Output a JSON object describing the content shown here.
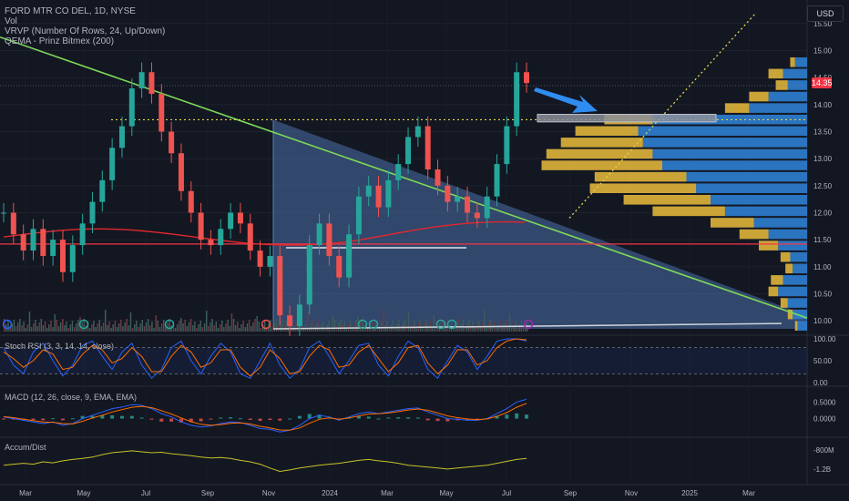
{
  "header": {
    "symbol": "FORD MTR CO DEL, 1D, NYSE",
    "vol": "Vol",
    "vrvp": "VRVP (Number Of Rows, 24, Up/Down)",
    "qema": "QEMA - Prinz Bitmex (200)",
    "currency": "USD",
    "last_price": "14.35"
  },
  "indicators": {
    "stoch": "Stoch RSI (3, 3, 14, 14, close)",
    "macd": "MACD (12, 26, close, 9, EMA, EMA)",
    "accum": "Accum/Dist"
  },
  "chart_data": [
    {
      "type": "line",
      "title": "FORD MTR CO DEL, 1D, NYSE",
      "x_ticks": [
        "Mar",
        "May",
        "Jul",
        "Sep",
        "Nov",
        "2024",
        "Mar",
        "May",
        "Jul",
        "Sep",
        "Nov",
        "2025",
        "Mar"
      ],
      "y_ticks": [
        "15.50",
        "15.00",
        "14.50",
        "14.00",
        "13.50",
        "13.00",
        "12.50",
        "12.00",
        "11.50",
        "11.00",
        "10.50",
        "10.00"
      ],
      "ylim": [
        9.8,
        15.7
      ],
      "series": [
        {
          "values": [
            12.0,
            11.6,
            11.3,
            11.7,
            11.2,
            11.5,
            10.9,
            11.4,
            11.8,
            12.2,
            12.6,
            13.2,
            13.6,
            14.3,
            14.6,
            14.2,
            13.5,
            13.1,
            12.4,
            12.0,
            11.5,
            11.4,
            11.7,
            12.0,
            11.8,
            11.3,
            11.0,
            11.2,
            10.1,
            9.9,
            10.3,
            11.4,
            11.8,
            11.2,
            10.8,
            11.6,
            12.3,
            12.5,
            12.1,
            12.6,
            12.9,
            13.4,
            13.6,
            12.8,
            12.5,
            12.2,
            12.3,
            12.0,
            11.9,
            12.3,
            12.9,
            13.6,
            14.6,
            14.4
          ]
        }
      ],
      "volume_profile": {
        "up": [
          0.04,
          0.06,
          0.08,
          0.12,
          0.1,
          0.06,
          0.07,
          0.12,
          0.16,
          0.22,
          0.34,
          0.4,
          0.46,
          0.5,
          0.6,
          0.64,
          0.68,
          0.7,
          0.64,
          0.24,
          0.16,
          0.08,
          0.1,
          0.05
        ],
        "down": [
          0.01,
          0.02,
          0.03,
          0.04,
          0.05,
          0.03,
          0.04,
          0.08,
          0.12,
          0.18,
          0.3,
          0.36,
          0.44,
          0.38,
          0.5,
          0.44,
          0.34,
          0.26,
          0.2,
          0.1,
          0.08,
          0.05,
          0.06,
          0.02
        ]
      },
      "annotations": {
        "dotted_resistance": 13.72,
        "white_support": 11.35,
        "red_line": 11.42,
        "target_box": [
          13.68,
          13.82
        ]
      }
    },
    {
      "type": "line",
      "title": "Stoch RSI (3, 3, 14, 14, close)",
      "y_ticks": [
        "100.00",
        "50.00",
        "0.00"
      ],
      "ylim": [
        0,
        100
      ],
      "bands": [
        80,
        20
      ],
      "series": [
        {
          "name": "K",
          "values": [
            80,
            40,
            20,
            70,
            90,
            50,
            15,
            40,
            85,
            95,
            60,
            30,
            70,
            90,
            40,
            10,
            30,
            80,
            95,
            50,
            20,
            60,
            90,
            70,
            20,
            10,
            50,
            90,
            40,
            10,
            30,
            80,
            95,
            60,
            20,
            50,
            85,
            90,
            40,
            15,
            60,
            95,
            80,
            30,
            10,
            50,
            85,
            70,
            30,
            60,
            95,
            100,
            100,
            95
          ]
        },
        {
          "name": "D",
          "values": [
            70,
            55,
            35,
            50,
            75,
            65,
            30,
            35,
            65,
            85,
            75,
            45,
            55,
            80,
            60,
            25,
            25,
            60,
            85,
            70,
            35,
            45,
            75,
            75,
            35,
            15,
            35,
            75,
            55,
            20,
            25,
            60,
            85,
            75,
            35,
            40,
            70,
            85,
            55,
            25,
            45,
            80,
            85,
            45,
            20,
            40,
            75,
            75,
            40,
            50,
            80,
            95,
            100,
            98
          ]
        }
      ]
    },
    {
      "type": "bar",
      "title": "MACD (12, 26, close, 9, EMA, EMA)",
      "y_ticks": [
        "0.5000",
        "0.0000"
      ],
      "ylim": [
        -0.45,
        0.7
      ],
      "series": [
        {
          "name": "MACD",
          "values": [
            0.05,
            0.0,
            -0.05,
            -0.1,
            -0.15,
            -0.1,
            -0.2,
            -0.15,
            0.0,
            0.1,
            0.2,
            0.3,
            0.35,
            0.42,
            0.4,
            0.3,
            0.15,
            0.05,
            -0.1,
            -0.2,
            -0.25,
            -0.22,
            -0.15,
            -0.1,
            -0.12,
            -0.2,
            -0.3,
            -0.32,
            -0.4,
            -0.35,
            -0.2,
            0.0,
            0.1,
            0.05,
            -0.05,
            0.05,
            0.15,
            0.2,
            0.15,
            0.2,
            0.25,
            0.3,
            0.32,
            0.2,
            0.1,
            0.0,
            -0.02,
            -0.05,
            -0.05,
            0.0,
            0.15,
            0.3,
            0.5,
            0.58
          ]
        },
        {
          "name": "Signal",
          "values": [
            0.06,
            0.03,
            -0.02,
            -0.06,
            -0.1,
            -0.11,
            -0.15,
            -0.16,
            -0.08,
            0.02,
            0.1,
            0.2,
            0.27,
            0.34,
            0.37,
            0.33,
            0.24,
            0.14,
            0.02,
            -0.09,
            -0.17,
            -0.2,
            -0.18,
            -0.14,
            -0.13,
            -0.16,
            -0.23,
            -0.28,
            -0.34,
            -0.35,
            -0.28,
            -0.14,
            -0.02,
            0.02,
            -0.02,
            0.02,
            0.08,
            0.14,
            0.15,
            0.17,
            0.21,
            0.26,
            0.29,
            0.25,
            0.17,
            0.08,
            0.03,
            -0.01,
            -0.03,
            -0.01,
            0.07,
            0.18,
            0.34,
            0.46
          ]
        }
      ]
    },
    {
      "type": "line",
      "title": "Accum/Dist",
      "y_ticks": [
        "-800M",
        "-1.2B"
      ],
      "ylim": [
        -1.45,
        -0.65
      ],
      "series": [
        {
          "values": [
            -1.12,
            -1.1,
            -1.08,
            -1.1,
            -1.05,
            -1.07,
            -1.03,
            -1.0,
            -0.98,
            -0.95,
            -0.9,
            -0.86,
            -0.84,
            -0.82,
            -0.84,
            -0.86,
            -0.85,
            -0.88,
            -0.9,
            -0.92,
            -0.95,
            -0.97,
            -0.96,
            -0.98,
            -1.02,
            -1.05,
            -1.1,
            -1.18,
            -1.25,
            -1.22,
            -1.18,
            -1.15,
            -1.12,
            -1.1,
            -1.08,
            -1.05,
            -1.02,
            -1.0,
            -1.03,
            -1.05,
            -1.08,
            -1.12,
            -1.14,
            -1.16,
            -1.18,
            -1.2,
            -1.18,
            -1.16,
            -1.14,
            -1.12,
            -1.08,
            -1.04,
            -1.0,
            -0.98
          ]
        }
      ]
    }
  ]
}
